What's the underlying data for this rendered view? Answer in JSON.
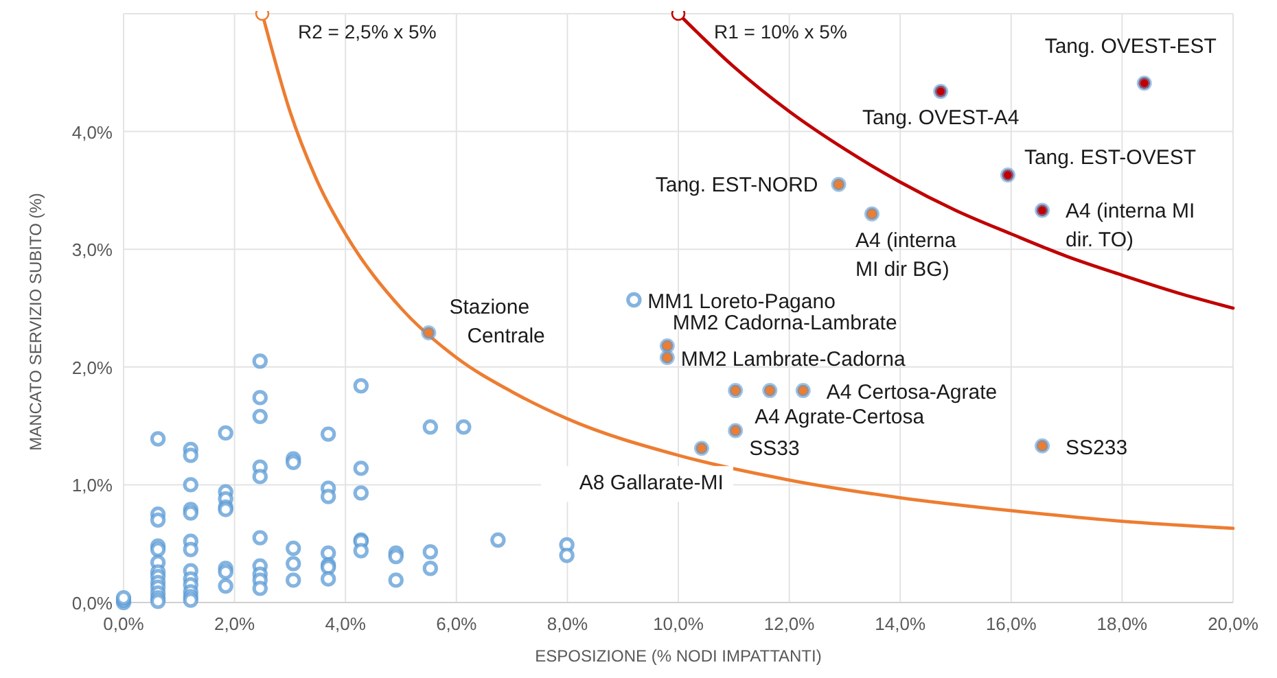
{
  "chart_data": {
    "type": "scatter",
    "xlabel": "ESPOSIZIONE (% NODI IMPATTANTI)",
    "ylabel": "MANCATO SERVIZIO SUBITO (%)",
    "xlim": [
      0,
      20
    ],
    "ylim": [
      0,
      5
    ],
    "xticks": [
      {
        "value": 0,
        "label": "0,0%"
      },
      {
        "value": 2,
        "label": "2,0%"
      },
      {
        "value": 4,
        "label": "4,0%"
      },
      {
        "value": 6,
        "label": "6,0%"
      },
      {
        "value": 8,
        "label": "8,0%"
      },
      {
        "value": 10,
        "label": "10,0%"
      },
      {
        "value": 12,
        "label": "12,0%"
      },
      {
        "value": 14,
        "label": "14,0%"
      },
      {
        "value": 16,
        "label": "16,0%"
      },
      {
        "value": 18,
        "label": "18,0%"
      },
      {
        "value": 20,
        "label": "20,0%"
      }
    ],
    "yticks": [
      {
        "value": 0,
        "label": "0,0%"
      },
      {
        "value": 1,
        "label": "1,0%"
      },
      {
        "value": 2,
        "label": "2,0%"
      },
      {
        "value": 3,
        "label": "3,0%"
      },
      {
        "value": 4,
        "label": "4,0%"
      }
    ],
    "grid": true,
    "series": [
      {
        "color": "#5b9bd5",
        "x": [
          0,
          0,
          0,
          0.62,
          0.62,
          0.62,
          0.62,
          0.62,
          0.62,
          0.62,
          0.62,
          0.62,
          0.62,
          0.62,
          0.62,
          0.62,
          1.21,
          1.21,
          1.21,
          1.21,
          1.21,
          1.21,
          1.21,
          1.21,
          1.21,
          1.21,
          1.21,
          1.21,
          1.21,
          1.84,
          1.84,
          1.84,
          1.84,
          1.84,
          1.84,
          1.84,
          1.84,
          2.46,
          2.46,
          2.46,
          2.46,
          2.46,
          2.46,
          2.46,
          2.46,
          2.46,
          2.46,
          3.06,
          3.06,
          3.06,
          3.06,
          3.06,
          3.69,
          3.69,
          3.69,
          3.69,
          3.69,
          3.69,
          3.69,
          4.28,
          4.28,
          4.28,
          4.28,
          4.28,
          4.28,
          4.91,
          4.91,
          4.91,
          5.53,
          5.53,
          5.53,
          6.13,
          6.75,
          7.99,
          7.99,
          9.2
        ],
        "values": [
          0,
          0.02,
          0.04,
          1.39,
          0.75,
          0.7,
          0.48,
          0.45,
          0.34,
          0.26,
          0.22,
          0.17,
          0.13,
          0.08,
          0.04,
          0.01,
          1.3,
          1.25,
          1,
          0.79,
          0.76,
          0.52,
          0.45,
          0.27,
          0.2,
          0.15,
          0.09,
          0.05,
          0.02,
          1.44,
          0.94,
          0.88,
          0.81,
          0.79,
          0.29,
          0.26,
          0.14,
          2.05,
          1.74,
          1.58,
          1.15,
          1.07,
          0.55,
          0.31,
          0.24,
          0.19,
          0.12,
          1.22,
          1.19,
          0.46,
          0.33,
          0.19,
          1.43,
          0.97,
          0.9,
          0.42,
          0.32,
          0.3,
          0.2,
          1.84,
          1.14,
          0.93,
          0.53,
          0.52,
          0.44,
          0.42,
          0.39,
          0.19,
          1.49,
          0.43,
          0.29,
          1.49,
          0.53,
          0.49,
          0.4,
          2.57
        ]
      },
      {
        "color": "#ed7d31",
        "x": [
          12.89,
          13.49,
          9.8,
          9.8,
          12.25,
          11.65,
          11.03,
          11.03,
          10.42,
          5.5,
          16.56
        ],
        "values": [
          3.55,
          3.3,
          2.18,
          2.08,
          1.8,
          1.8,
          1.8,
          1.46,
          1.31,
          2.29,
          1.33
        ]
      },
      {
        "color": "#c00000",
        "x": [
          18.4,
          14.73,
          15.94,
          16.56
        ],
        "values": [
          4.41,
          4.34,
          3.63,
          3.33
        ]
      },
      {
        "type": "line",
        "name": "R2 = 2,5% x 5%",
        "color": "#ed7d31",
        "x": [
          2.5,
          3,
          3.5,
          4,
          5,
          6,
          7,
          8,
          10,
          12,
          14,
          16,
          18,
          20
        ],
        "values": [
          5,
          4.17,
          3.57,
          3.13,
          2.5,
          2.08,
          1.79,
          1.56,
          1.25,
          1.04,
          0.89,
          0.78,
          0.69,
          0.63
        ]
      },
      {
        "type": "line",
        "name": "R1 = 10% x 5%",
        "color": "#c00000",
        "x": [
          10,
          11,
          12,
          13,
          14,
          15,
          16,
          17,
          18,
          19,
          20
        ],
        "values": [
          5,
          4.55,
          4.17,
          3.85,
          3.57,
          3.33,
          3.13,
          2.94,
          2.78,
          2.63,
          2.5
        ]
      }
    ],
    "annotations": [
      {
        "text": "Tang. OVEST-EST",
        "x": 18.4,
        "y": 4.41
      },
      {
        "text": "Tang. OVEST-A4",
        "x": 14.73,
        "y": 4.34
      },
      {
        "text": "Tang. EST-OVEST",
        "x": 15.94,
        "y": 3.63
      },
      {
        "text": "A4 (interna MI\ndir. TO)",
        "x": 16.56,
        "y": 3.33
      },
      {
        "text": "Tang. EST-NORD",
        "x": 12.89,
        "y": 3.55
      },
      {
        "text": "A4 (interna\nMI dir BG)",
        "x": 13.49,
        "y": 3.3
      },
      {
        "text": "MM1 Loreto-Pagano",
        "x": 9.2,
        "y": 2.57
      },
      {
        "text": "MM2 Cadorna-Lambrate",
        "x": 9.8,
        "y": 2.18
      },
      {
        "text": "MM2 Lambrate-Cadorna",
        "x": 9.8,
        "y": 2.08
      },
      {
        "text": "A4 Certosa-Agrate",
        "x": 12.25,
        "y": 1.8
      },
      {
        "text": "A4 Agrate-Certosa",
        "x": 11.65,
        "y": 1.8
      },
      {
        "text": "SS33",
        "x": 11.03,
        "y": 1.46
      },
      {
        "text": "A8 Gallarate-MI",
        "x": 10.42,
        "y": 1.31
      },
      {
        "text": "Stazione\nCentrale",
        "x": 5.5,
        "y": 2.29
      },
      {
        "text": "SS233",
        "x": 16.56,
        "y": 1.33
      }
    ]
  }
}
